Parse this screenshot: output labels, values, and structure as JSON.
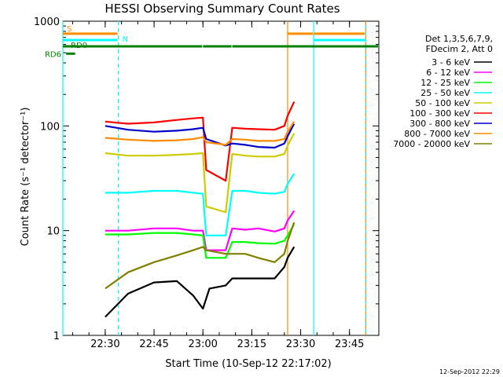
{
  "chart_data": {
    "type": "line",
    "title": "HESSI Observing Summary Count Rates",
    "ylabel": "Count Rate (s⁻¹ detector⁻¹)",
    "xlabel": "Start Time (10-Sep-12 22:17:02)",
    "footer_date": "12-Sep-2012 22:29",
    "y_scale": "log",
    "ylim": [
      1,
      1000
    ],
    "xlim_minutes_after_start": [
      0,
      97
    ],
    "y_ticks": [
      {
        "value": 1,
        "label": "1"
      },
      {
        "value": 10,
        "label": "10"
      },
      {
        "value": 100,
        "label": "100"
      },
      {
        "value": 1000,
        "label": "1000"
      }
    ],
    "x_ticks": [
      {
        "value": 13,
        "label": "22:30"
      },
      {
        "value": 28,
        "label": "22:45"
      },
      {
        "value": 43,
        "label": "23:00"
      },
      {
        "value": 58,
        "label": "23:15"
      },
      {
        "value": 73,
        "label": "23:30"
      },
      {
        "value": 88,
        "label": "23:45"
      }
    ],
    "legend": {
      "header": [
        "Det 1,3,5,6,7,9,",
        "FDecim 2, Att 0"
      ],
      "placement": "right"
    },
    "flag_bars": [
      {
        "name": "S",
        "color": "#ff8c00",
        "segments": [
          [
            0,
            17
          ],
          [
            69,
            77
          ],
          [
            77,
            93
          ]
        ]
      },
      {
        "name": "N",
        "color": "#00ffff",
        "segments": [
          [
            0,
            17
          ],
          [
            77,
            93
          ]
        ]
      },
      {
        "name": "RD0",
        "color": "#008000",
        "segments": [
          [
            0,
            43
          ],
          [
            43,
            52
          ],
          [
            52,
            97
          ]
        ]
      },
      {
        "name": "RD6",
        "color": "#008000",
        "segments": [
          [
            1,
            4
          ]
        ]
      }
    ],
    "vertical_markers": [
      {
        "x": 0,
        "color": "#00ffff",
        "style": "solid"
      },
      {
        "x": 17,
        "color": "#00ffff",
        "style": "dashed"
      },
      {
        "x": 69,
        "color": "#ff8c00",
        "style": "solid"
      },
      {
        "x": 77,
        "color": "#00ffff",
        "style": "solid"
      },
      {
        "x": 93,
        "color": "#00ffff",
        "style": "solid"
      },
      {
        "x": 93,
        "color": "#ff8c00",
        "style": "dashed"
      }
    ],
    "series": [
      {
        "name": "3 - 6 keV",
        "color": "#000000",
        "x": [
          13,
          20,
          28,
          35,
          40,
          43,
          45,
          50,
          52,
          56,
          60,
          65,
          68,
          69,
          71
        ],
        "y": [
          1.5,
          2.5,
          3.2,
          3.3,
          2.4,
          1.8,
          2.8,
          3.0,
          3.5,
          3.5,
          3.5,
          3.5,
          4.5,
          5.5,
          7.0
        ]
      },
      {
        "name": "6 - 12 keV",
        "color": "#ff00ff",
        "x": [
          13,
          20,
          28,
          35,
          40,
          43,
          44,
          50,
          52,
          56,
          60,
          65,
          68,
          69,
          71
        ],
        "y": [
          10,
          10,
          10.5,
          10.5,
          10,
          10,
          6.5,
          6.5,
          10.5,
          10.2,
          10.5,
          9.8,
          10.5,
          12.5,
          15.5
        ]
      },
      {
        "name": "12 - 25 keV",
        "color": "#00ff00",
        "x": [
          13,
          20,
          28,
          35,
          40,
          43,
          44,
          50,
          52,
          56,
          60,
          65,
          68,
          69,
          71
        ],
        "y": [
          9.2,
          9.2,
          9.5,
          9.5,
          9.2,
          9.0,
          5.5,
          5.5,
          7.8,
          7.8,
          7.6,
          7.5,
          8.0,
          9.0,
          11.5
        ]
      },
      {
        "name": "25 - 50 keV",
        "color": "#00ffff",
        "x": [
          13,
          20,
          28,
          35,
          40,
          43,
          44,
          50,
          52,
          56,
          60,
          65,
          68,
          69,
          71
        ],
        "y": [
          23,
          23,
          24,
          24,
          23,
          22.5,
          9.0,
          9.0,
          24,
          24,
          23,
          22.5,
          23.5,
          28,
          35
        ]
      },
      {
        "name": "50 - 100 keV",
        "color": "#cccc00",
        "x": [
          13,
          20,
          28,
          35,
          40,
          43,
          44,
          50,
          52,
          56,
          60,
          65,
          68,
          69,
          71
        ],
        "y": [
          55,
          52,
          52,
          53,
          54,
          55,
          17,
          15,
          54,
          52,
          51,
          51,
          54,
          65,
          85
        ]
      },
      {
        "name": "100 - 300 keV",
        "color": "#ff0000",
        "x": [
          13,
          20,
          28,
          35,
          40,
          43,
          44,
          50,
          52,
          56,
          60,
          65,
          68,
          69,
          71
        ],
        "y": [
          110,
          105,
          108,
          114,
          118,
          120,
          38,
          30,
          96,
          94,
          93,
          92,
          100,
          125,
          170
        ]
      },
      {
        "name": "300 - 800 keV",
        "color": "#0000cc",
        "x": [
          13,
          20,
          28,
          35,
          40,
          43,
          44,
          50,
          52,
          56,
          60,
          65,
          68,
          69,
          71
        ],
        "y": [
          100,
          92,
          88,
          90,
          93,
          96,
          75,
          65,
          68,
          66,
          63,
          62,
          68,
          80,
          105
        ]
      },
      {
        "name": "800 - 7000 keV",
        "color": "#ff8c00",
        "x": [
          13,
          20,
          28,
          35,
          40,
          43,
          44,
          50,
          52,
          56,
          60,
          65,
          68,
          69,
          71
        ],
        "y": [
          77,
          74,
          72,
          73,
          75,
          78,
          70,
          66,
          75,
          74,
          72,
          72,
          75,
          88,
          110
        ]
      },
      {
        "name": "7000 - 20000 keV",
        "color": "#808000",
        "x": [
          13,
          20,
          28,
          35,
          40,
          43,
          44,
          50,
          52,
          56,
          60,
          65,
          68,
          69,
          71
        ],
        "y": [
          2.8,
          4.0,
          5.0,
          5.8,
          6.5,
          7.0,
          6.5,
          6.0,
          6.0,
          6.0,
          5.5,
          5.0,
          6.0,
          8.0,
          12.0
        ]
      }
    ]
  }
}
